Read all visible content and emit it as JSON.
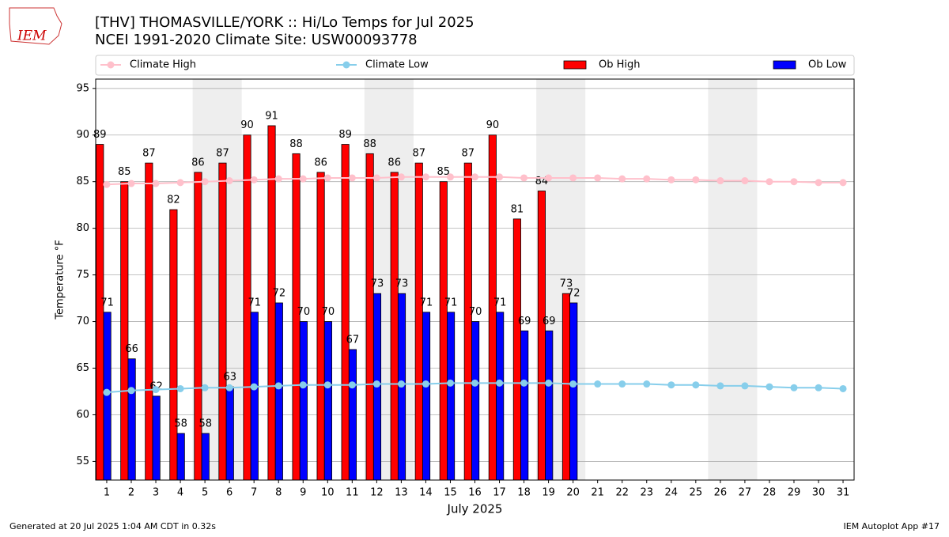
{
  "logo": "IEM",
  "footer": {
    "left": "Generated at 20 Jul 2025 1:04 AM CDT in 0.32s",
    "right": "IEM Autoplot App #17"
  },
  "chart_data": {
    "type": "bar",
    "title": "[THV] THOMASVILLE/YORK :: Hi/Lo Temps for Jul 2025",
    "subtitle": "NCEI 1991-2020 Climate Site: USW00093778",
    "xlabel": "July 2025",
    "ylabel": "Temperature °F",
    "categories": [
      "1",
      "2",
      "3",
      "4",
      "5",
      "6",
      "7",
      "8",
      "9",
      "10",
      "11",
      "12",
      "13",
      "14",
      "15",
      "16",
      "17",
      "18",
      "19",
      "20",
      "21",
      "22",
      "23",
      "24",
      "25",
      "26",
      "27",
      "28",
      "29",
      "30",
      "31"
    ],
    "ylim": [
      53,
      96
    ],
    "yticks": [
      55,
      60,
      65,
      70,
      75,
      80,
      85,
      90,
      95
    ],
    "grid": true,
    "series": [
      {
        "name": "Climate High",
        "kind": "line",
        "color": "#ffc0cb",
        "values": [
          84.7,
          84.8,
          84.8,
          84.9,
          85.0,
          85.1,
          85.2,
          85.3,
          85.3,
          85.4,
          85.4,
          85.4,
          85.5,
          85.5,
          85.5,
          85.5,
          85.5,
          85.4,
          85.4,
          85.4,
          85.4,
          85.3,
          85.3,
          85.2,
          85.2,
          85.1,
          85.1,
          85.0,
          85.0,
          84.9,
          84.9
        ]
      },
      {
        "name": "Climate Low",
        "kind": "line",
        "color": "#87ceeb",
        "values": [
          62.4,
          62.6,
          62.7,
          62.8,
          62.9,
          62.9,
          63.0,
          63.1,
          63.2,
          63.2,
          63.2,
          63.3,
          63.3,
          63.3,
          63.4,
          63.4,
          63.4,
          63.4,
          63.4,
          63.3,
          63.3,
          63.3,
          63.3,
          63.2,
          63.2,
          63.1,
          63.1,
          63.0,
          62.9,
          62.9,
          62.8
        ]
      },
      {
        "name": "Ob High",
        "kind": "bar",
        "color": "#ff0000",
        "values": [
          89,
          85,
          87,
          82,
          86,
          87,
          90,
          91,
          88,
          86,
          89,
          88,
          86,
          87,
          85,
          87,
          90,
          81,
          84,
          73,
          null,
          null,
          null,
          null,
          null,
          null,
          null,
          null,
          null,
          null,
          null
        ]
      },
      {
        "name": "Ob Low",
        "kind": "bar",
        "color": "#0000ff",
        "values": [
          71,
          66,
          62,
          58,
          58,
          63,
          71,
          72,
          70,
          70,
          67,
          73,
          73,
          71,
          71,
          70,
          71,
          69,
          69,
          72,
          null,
          null,
          null,
          null,
          null,
          null,
          null,
          null,
          null,
          null,
          null
        ]
      }
    ]
  }
}
